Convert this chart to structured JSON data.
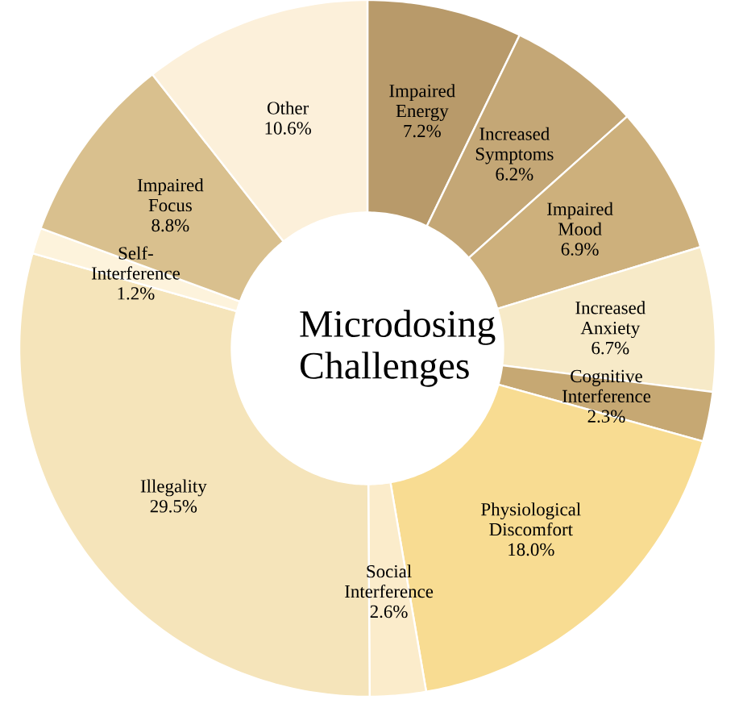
{
  "chart_data": {
    "type": "donut",
    "title": "Microdosing Challenges",
    "categories": [
      "Impaired Energy",
      "Increased Symptoms",
      "Impaired Mood",
      "Increased Anxiety",
      "Cognitive Interference",
      "Physiological Discomfort",
      "Social Interference",
      "Illegality",
      "Self-Interference",
      "Impaired Focus",
      "Other"
    ],
    "values": [
      7.2,
      6.2,
      6.9,
      6.7,
      2.3,
      18.0,
      2.6,
      29.5,
      1.2,
      8.8,
      10.6
    ],
    "value_labels": [
      "7.2%",
      "6.2%",
      "6.9%",
      "6.7%",
      "2.3%",
      "18.0%",
      "2.6%",
      "29.5%",
      "1.2%",
      "8.8%",
      "10.6%"
    ],
    "colors": [
      "#b89a6a",
      "#c4a776",
      "#cdb07c",
      "#f7eac8",
      "#c6a873",
      "#f8dc92",
      "#fbeccb",
      "#f5e4ba",
      "#fdf3dc",
      "#d9c08e",
      "#fcf0da"
    ]
  }
}
